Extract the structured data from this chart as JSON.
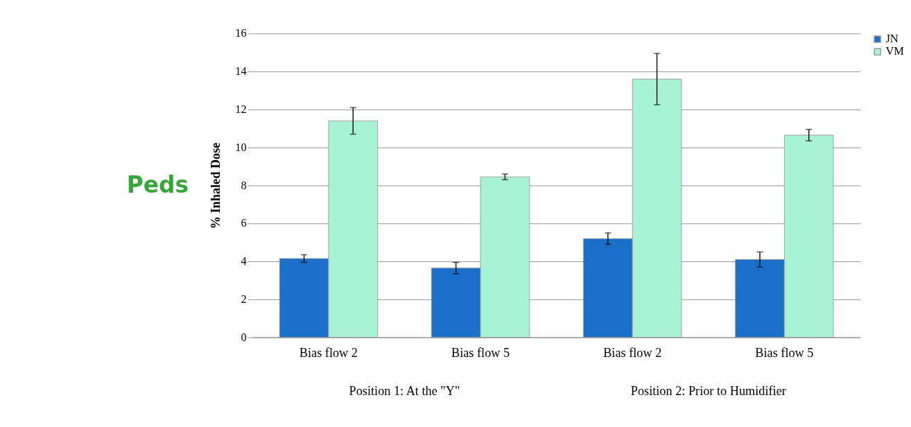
{
  "chart_data": {
    "type": "bar",
    "title": "Peds",
    "ylabel": "% Inhaled Dose",
    "categories": [
      "Bias flow 2",
      "Bias flow 5",
      "Bias flow 2",
      "Bias flow 5"
    ],
    "annotations": [
      "Position 1: At the \"Y\"",
      "Position 2: Prior to Humidifier"
    ],
    "series": [
      {
        "name": "JN",
        "color": "#1a70c8",
        "values": [
          4.15,
          3.65,
          5.2,
          4.1
        ],
        "errors": [
          0.2,
          0.3,
          0.3,
          0.4
        ]
      },
      {
        "name": "VM",
        "color": "#a8f2d6",
        "values": [
          11.4,
          8.45,
          13.6,
          10.65
        ],
        "errors": [
          0.7,
          0.15,
          1.35,
          0.3
        ]
      }
    ],
    "ylim": [
      0,
      16
    ],
    "yticks": [
      0,
      2,
      4,
      6,
      8,
      10,
      12,
      14,
      16
    ],
    "grid": "y",
    "legend": "right"
  }
}
